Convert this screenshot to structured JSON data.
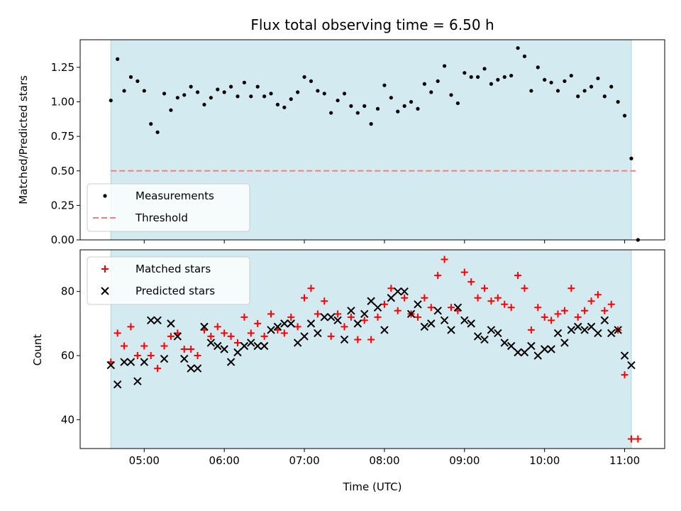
{
  "chart_data": [
    {
      "type": "scatter",
      "title": "Flux total observing time = 6.50 h",
      "xlabel": "",
      "ylabel": "Matched/Predicted stars",
      "xlim": [
        "04:12",
        "11:30"
      ],
      "ylim": [
        0,
        1.45
      ],
      "yticks": [
        "0.00",
        "0.25",
        "0.50",
        "0.75",
        "1.00",
        "1.25"
      ],
      "grid": false,
      "legend_position": "lower-left",
      "shaded_region": {
        "start": "04:35",
        "end": "11:05",
        "color": "#d3eaf0"
      },
      "threshold": {
        "name": "Threshold",
        "value": 0.5,
        "x_start": "04:35",
        "x_end": "11:10",
        "color": "#f08080",
        "style": "dashed"
      },
      "series": [
        {
          "name": "Measurements",
          "marker": "dot",
          "color": "#000000",
          "x": [
            "04:35",
            "04:40",
            "04:45",
            "04:50",
            "04:55",
            "05:00",
            "05:05",
            "05:10",
            "05:15",
            "05:20",
            "05:25",
            "05:30",
            "05:35",
            "05:40",
            "05:45",
            "05:50",
            "05:55",
            "06:00",
            "06:05",
            "06:10",
            "06:15",
            "06:20",
            "06:25",
            "06:30",
            "06:35",
            "06:40",
            "06:45",
            "06:50",
            "06:55",
            "07:00",
            "07:05",
            "07:10",
            "07:15",
            "07:20",
            "07:25",
            "07:30",
            "07:35",
            "07:40",
            "07:45",
            "07:50",
            "07:55",
            "08:00",
            "08:05",
            "08:10",
            "08:15",
            "08:20",
            "08:25",
            "08:30",
            "08:35",
            "08:40",
            "08:45",
            "08:50",
            "08:55",
            "09:00",
            "09:05",
            "09:10",
            "09:15",
            "09:20",
            "09:25",
            "09:30",
            "09:35",
            "09:40",
            "09:45",
            "09:50",
            "09:55",
            "10:00",
            "10:05",
            "10:10",
            "10:15",
            "10:20",
            "10:25",
            "10:30",
            "10:35",
            "10:40",
            "10:45",
            "10:50",
            "10:55",
            "11:00",
            "11:05",
            "11:10"
          ],
          "y": [
            1.01,
            1.31,
            1.08,
            1.18,
            1.15,
            1.08,
            0.84,
            0.78,
            1.06,
            0.94,
            1.03,
            1.05,
            1.11,
            1.07,
            0.98,
            1.03,
            1.09,
            1.07,
            1.11,
            1.04,
            1.14,
            1.04,
            1.11,
            1.04,
            1.06,
            0.98,
            0.96,
            1.02,
            1.07,
            1.18,
            1.15,
            1.08,
            1.06,
            0.92,
            1.01,
            1.06,
            0.97,
            0.92,
            0.97,
            0.84,
            0.95,
            1.12,
            1.03,
            0.93,
            0.97,
            1.0,
            0.95,
            1.13,
            1.07,
            1.15,
            1.26,
            1.05,
            0.99,
            1.21,
            1.18,
            1.18,
            1.24,
            1.13,
            1.16,
            1.18,
            1.19,
            1.39,
            1.33,
            1.08,
            1.25,
            1.16,
            1.14,
            1.08,
            1.15,
            1.19,
            1.04,
            1.08,
            1.11,
            1.17,
            1.04,
            1.11,
            1.0,
            0.9,
            0.59,
            0.0
          ]
        }
      ]
    },
    {
      "type": "scatter",
      "title": "",
      "xlabel": "Time (UTC)",
      "ylabel": "Count",
      "xlim": [
        "04:12",
        "11:30"
      ],
      "ylim": [
        31,
        93
      ],
      "yticks": [
        "40",
        "60",
        "80"
      ],
      "xticks": [
        "05:00",
        "06:00",
        "07:00",
        "08:00",
        "09:00",
        "10:00",
        "11:00"
      ],
      "grid": false,
      "legend_position": "upper-left",
      "shaded_region": {
        "start": "04:35",
        "end": "11:05",
        "color": "#d3eaf0"
      },
      "series": [
        {
          "name": "Matched stars",
          "marker": "plus",
          "color": "#ff0000",
          "x": [
            "04:35",
            "04:40",
            "04:45",
            "04:50",
            "04:55",
            "05:00",
            "05:05",
            "05:10",
            "05:15",
            "05:20",
            "05:25",
            "05:30",
            "05:35",
            "05:40",
            "05:45",
            "05:50",
            "05:55",
            "06:00",
            "06:05",
            "06:10",
            "06:15",
            "06:20",
            "06:25",
            "06:30",
            "06:35",
            "06:40",
            "06:45",
            "06:50",
            "06:55",
            "07:00",
            "07:05",
            "07:10",
            "07:15",
            "07:20",
            "07:25",
            "07:30",
            "07:35",
            "07:40",
            "07:45",
            "07:50",
            "07:55",
            "08:00",
            "08:05",
            "08:10",
            "08:15",
            "08:20",
            "08:25",
            "08:30",
            "08:35",
            "08:40",
            "08:45",
            "08:50",
            "08:55",
            "09:00",
            "09:05",
            "09:10",
            "09:15",
            "09:20",
            "09:25",
            "09:30",
            "09:35",
            "09:40",
            "09:45",
            "09:50",
            "09:55",
            "10:00",
            "10:05",
            "10:10",
            "10:15",
            "10:20",
            "10:25",
            "10:30",
            "10:35",
            "10:40",
            "10:45",
            "10:50",
            "10:55",
            "11:00",
            "11:05",
            "11:10"
          ],
          "y": [
            58,
            67,
            63,
            69,
            60,
            63,
            60,
            56,
            63,
            66,
            67,
            62,
            62,
            60,
            68,
            66,
            69,
            67,
            66,
            64,
            72,
            67,
            70,
            66,
            73,
            68,
            67,
            72,
            69,
            78,
            81,
            73,
            77,
            66,
            73,
            69,
            72,
            65,
            71,
            65,
            72,
            76,
            81,
            74,
            78,
            73,
            72,
            78,
            75,
            85,
            90,
            75,
            74,
            86,
            83,
            78,
            81,
            77,
            78,
            76,
            75,
            85,
            81,
            68,
            75,
            72,
            71,
            73,
            74,
            81,
            72,
            74,
            77,
            79,
            74,
            76,
            68,
            54,
            34,
            34
          ]
        },
        {
          "name": "Predicted stars",
          "marker": "x",
          "color": "#000000",
          "x": [
            "04:35",
            "04:40",
            "04:45",
            "04:50",
            "04:55",
            "05:00",
            "05:05",
            "05:10",
            "05:15",
            "05:20",
            "05:25",
            "05:30",
            "05:35",
            "05:40",
            "05:45",
            "05:50",
            "05:55",
            "06:00",
            "06:05",
            "06:10",
            "06:15",
            "06:20",
            "06:25",
            "06:30",
            "06:35",
            "06:40",
            "06:45",
            "06:50",
            "06:55",
            "07:00",
            "07:05",
            "07:10",
            "07:15",
            "07:20",
            "07:25",
            "07:30",
            "07:35",
            "07:40",
            "07:45",
            "07:50",
            "07:55",
            "08:00",
            "08:05",
            "08:10",
            "08:15",
            "08:20",
            "08:25",
            "08:30",
            "08:35",
            "08:40",
            "08:45",
            "08:50",
            "08:55",
            "09:00",
            "09:05",
            "09:10",
            "09:15",
            "09:20",
            "09:25",
            "09:30",
            "09:35",
            "09:40",
            "09:45",
            "09:50",
            "09:55",
            "10:00",
            "10:05",
            "10:10",
            "10:15",
            "10:20",
            "10:25",
            "10:30",
            "10:35",
            "10:40",
            "10:45",
            "10:50",
            "10:55",
            "11:00",
            "11:05",
            "11:10"
          ],
          "y": [
            57,
            51,
            58,
            58,
            52,
            58,
            71,
            71,
            59,
            70,
            66,
            59,
            56,
            56,
            69,
            64,
            63,
            62,
            58,
            61,
            63,
            64,
            63,
            63,
            68,
            69,
            70,
            70,
            64,
            66,
            70,
            67,
            72,
            72,
            71,
            65,
            74,
            70,
            73,
            77,
            75,
            68,
            78,
            80,
            80,
            73,
            76,
            69,
            70,
            74,
            71,
            68,
            75,
            71,
            70,
            66,
            65,
            68,
            67,
            64,
            63,
            61,
            61,
            63,
            60,
            62,
            62,
            67,
            64,
            68,
            69,
            68,
            69,
            67,
            71,
            67,
            68,
            60,
            57,
            null
          ]
        }
      ]
    }
  ]
}
